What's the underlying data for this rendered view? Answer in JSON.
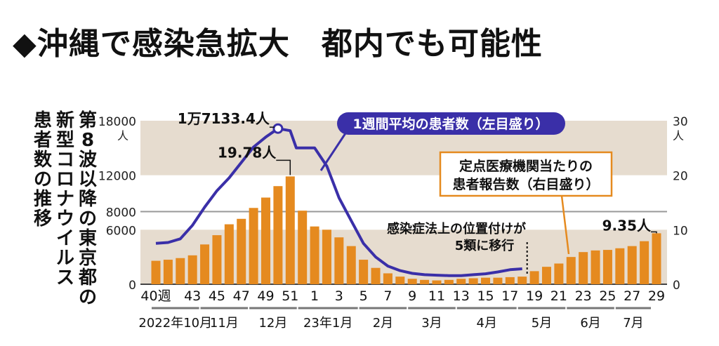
{
  "headline": "◆沖縄で感染急拡大　都内でも可能性",
  "side_title": [
    "第8波以降の東京都の",
    "新型コロナウイルス",
    "患者数の推移"
  ],
  "chart_data": {
    "type": "bar+line",
    "left_axis": {
      "ticks": [
        0,
        6000,
        8000,
        12000,
        18000
      ],
      "labels": [
        "0",
        "6000",
        "8000",
        "12000",
        "18000"
      ],
      "unit": "人",
      "ylim": [
        0,
        18000
      ]
    },
    "right_axis": {
      "ticks": [
        0,
        10,
        20,
        30
      ],
      "labels": [
        "0",
        "10",
        "20",
        "30"
      ],
      "unit": "人",
      "ylim": [
        0,
        30
      ]
    },
    "x_tick_labels": [
      "40週",
      "43",
      "45",
      "47",
      "49",
      "51",
      "1",
      "3",
      "5",
      "7",
      "9",
      "11",
      "13",
      "15",
      "17",
      "19",
      "21",
      "23",
      "25",
      "27",
      "29"
    ],
    "x_tick_weeks": [
      40,
      43,
      45,
      47,
      49,
      51,
      53,
      55,
      57,
      59,
      61,
      63,
      65,
      67,
      69,
      71,
      73,
      75,
      77,
      79,
      81
    ],
    "month_labels": [
      "2022年10月",
      "11月",
      "12月",
      "23年1月",
      "2月",
      "3月",
      "4月",
      "5月",
      "6月",
      "7月"
    ],
    "month_week_ranges": [
      [
        40,
        44
      ],
      [
        44,
        48
      ],
      [
        48,
        52
      ],
      [
        52,
        57
      ],
      [
        57,
        61
      ],
      [
        61,
        65
      ],
      [
        65,
        70
      ],
      [
        70,
        74
      ],
      [
        74,
        78
      ],
      [
        78,
        81
      ]
    ],
    "bars_weeks": [
      40,
      41,
      42,
      43,
      44,
      45,
      46,
      47,
      48,
      49,
      50,
      51,
      52,
      53,
      54,
      55,
      56,
      57,
      58,
      59,
      60,
      61,
      62,
      63,
      64,
      65,
      66,
      67,
      68,
      69,
      70,
      71,
      72,
      73,
      74,
      75,
      76,
      77,
      78,
      79,
      80,
      81
    ],
    "bars_values": [
      4.3,
      4.5,
      4.8,
      5.3,
      7.3,
      9.0,
      11.0,
      12.0,
      14.0,
      15.9,
      18.0,
      19.78,
      13.5,
      10.6,
      10.0,
      8.6,
      7.0,
      4.5,
      3.0,
      2.0,
      1.4,
      1.0,
      0.8,
      0.7,
      0.8,
      1.0,
      1.1,
      1.2,
      1.2,
      1.3,
      1.4,
      2.4,
      3.2,
      3.8,
      5.0,
      5.9,
      6.2,
      6.3,
      6.6,
      7.0,
      7.9,
      9.35
    ],
    "line_weeks": [
      40,
      41,
      42,
      43,
      44,
      45,
      46,
      47,
      48,
      49,
      50,
      51,
      51.5,
      52,
      53,
      54,
      55,
      56,
      57,
      58,
      59,
      60,
      61,
      62,
      63,
      64,
      65,
      66,
      67,
      68,
      69,
      70
    ],
    "line_values": [
      4500,
      4600,
      5000,
      6500,
      8500,
      10300,
      11700,
      13400,
      15100,
      16200,
      17133.4,
      16900,
      15000,
      15000,
      15000,
      13000,
      9500,
      7000,
      4500,
      3000,
      2000,
      1500,
      1200,
      1050,
      1000,
      950,
      950,
      1050,
      1150,
      1350,
      1600,
      1700
    ],
    "series": [
      {
        "name": "1週間平均の患者数（左目盛り）",
        "axis": "left",
        "type": "line",
        "color": "#3a2fa8"
      },
      {
        "name": "定点医療機関当たりの患者報告数（右目盛り）",
        "axis": "right",
        "type": "bar",
        "color": "#e58a1f"
      }
    ],
    "annotations": {
      "line_peak": "1万7133.4人",
      "bar_peak": "19.78人",
      "last_bar": "9.35人",
      "event": "感染症法上の位置付けが\n5類に移行"
    },
    "band_color": "#e6dccf",
    "refline_value": 8000
  }
}
